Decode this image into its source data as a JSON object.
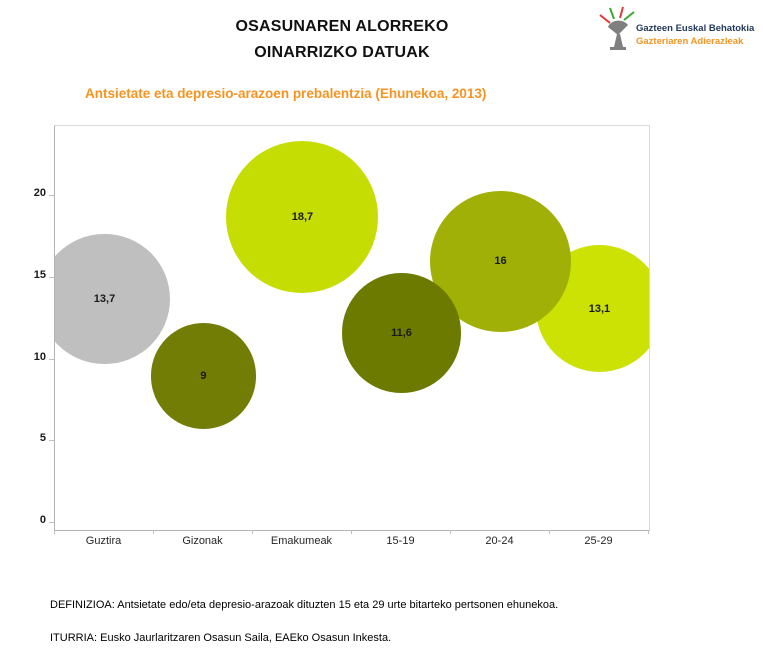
{
  "header": {
    "title_line1": "OSASUNAREN ALORREKO",
    "title_line2": "OINARRIZKO DATUAK",
    "logo": {
      "name": "Gazteen Euskal Behatokia",
      "sub": "Gazteriaren Adierazleak"
    }
  },
  "colors": {
    "accent_orange": "#f79421",
    "logo_navy": "#233a5c",
    "axis_gray": "#bfbfbf",
    "border_gray": "#d9d9d9"
  },
  "chart_data": {
    "type": "scatter",
    "subtype": "bubble",
    "title": "Antsietate eta depresio-arazoen prebalentzia (Ehunekoa, 2013)",
    "categories": [
      "Guztira",
      "Gizonak",
      "Emakumeak",
      "15-19",
      "20-24",
      "25-29"
    ],
    "values": [
      13.7,
      9,
      18.7,
      11.6,
      16,
      13.1
    ],
    "value_labels": [
      "13,7",
      "9",
      "18,7",
      "11,6",
      "16",
      "13,1"
    ],
    "bubble_colors": [
      "#bfbfbf",
      "#717d04",
      "#c6dd03",
      "#6c7a00",
      "#a0b006",
      "#cbe204"
    ],
    "yticks": [
      0,
      5,
      10,
      15,
      20
    ],
    "ylim": [
      -0.5,
      24.2
    ],
    "xlabel": "",
    "ylabel": "",
    "grid": false,
    "legend": "none",
    "note": "bubble radius proportional to sqrt(value); label centered in bubble"
  },
  "footer": {
    "definition": "DEFINIZIOA: Antsietate edo/eta depresio-arazoak dituzten 15 eta 29 urte bitarteko pertsonen ehunekoa.",
    "source": "ITURRIA: Eusko Jaurlaritzaren Osasun Saila, EAEko Osasun Inkesta."
  }
}
